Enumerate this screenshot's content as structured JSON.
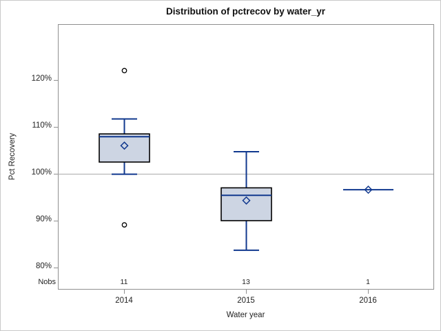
{
  "title": "Distribution of pctrecov by water_yr",
  "chart_data": {
    "type": "boxplot",
    "title": "Distribution of pctrecov by water_yr",
    "xlabel": "Water year",
    "ylabel": "Pct Recovery",
    "nobs_label": "Nobs",
    "y_ticks": [
      80,
      90,
      100,
      110,
      120
    ],
    "y_tick_suffix": "%",
    "ylim": [
      75.5,
      131.5
    ],
    "reference_line": 100,
    "grid": false,
    "legend_position": "none",
    "categories": [
      "2014",
      "2015",
      "2016"
    ],
    "groups": [
      {
        "category": "2014",
        "nobs": "11",
        "whisker_low": 99.9,
        "q1": 102.5,
        "median": 107.9,
        "q3": 108.5,
        "whisker_high": 111.7,
        "mean": 106.0,
        "outliers": [
          122.0,
          89.1
        ]
      },
      {
        "category": "2015",
        "nobs": "13",
        "whisker_low": 83.7,
        "q1": 90.0,
        "median": 95.4,
        "q3": 97.0,
        "whisker_high": 104.7,
        "mean": 94.3,
        "outliers": []
      },
      {
        "category": "2016",
        "nobs": "1",
        "whisker_low": 96.6,
        "q1": 96.6,
        "median": 96.6,
        "q3": 96.6,
        "whisker_high": 96.6,
        "mean": 96.6,
        "outliers": []
      }
    ],
    "colors": {
      "box_fill": "#CDD5E3",
      "box_border": "#000000",
      "line_blue": "#10388E",
      "frame_gray": "#8F8F8F",
      "ref_line_gray": "#A9A9A9",
      "outlier_stroke": "#000000",
      "text": "#1A1A1A"
    }
  }
}
